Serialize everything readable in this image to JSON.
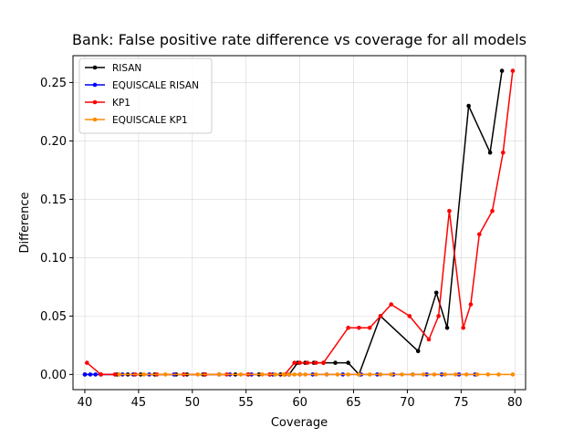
{
  "chart_data": {
    "type": "line",
    "title": "Bank: False positive rate difference vs coverage for all models",
    "xlabel": "Coverage",
    "ylabel": "Difference",
    "xlim": [
      38.9,
      81.0
    ],
    "ylim": [
      -0.013,
      0.273
    ],
    "xticks": [
      "40",
      "45",
      "50",
      "55",
      "60",
      "65",
      "70",
      "75",
      "80"
    ],
    "yticks": [
      "0.00",
      "0.05",
      "0.10",
      "0.15",
      "0.20",
      "0.25"
    ],
    "grid": true,
    "legend_position": "top-left",
    "series": [
      {
        "name": "RISAN",
        "color": "#000000",
        "x": [
          40.0,
          41.5,
          43.0,
          44.0,
          45.2,
          46.5,
          48.5,
          49.5,
          51.0,
          52.5,
          54.0,
          55.2,
          56.2,
          57.2,
          58.2,
          59.0,
          59.8,
          60.5,
          61.3,
          62.2,
          63.3,
          64.5,
          65.5,
          67.5,
          71.0,
          72.7,
          73.7,
          75.7,
          77.7,
          78.8
        ],
        "y": [
          0.0,
          0.0,
          0.0,
          0.0,
          0.0,
          0.0,
          0.0,
          0.0,
          0.0,
          0.0,
          0.0,
          0.0,
          0.0,
          0.0,
          0.0,
          0.0,
          0.01,
          0.01,
          0.01,
          0.01,
          0.01,
          0.01,
          0.0,
          0.05,
          0.02,
          0.07,
          0.04,
          0.23,
          0.19,
          0.26
        ]
      },
      {
        "name": "EQUISCALE RISAN",
        "color": "#0000ff",
        "x": [
          40.0,
          40.5,
          41.0,
          43.5,
          44.5,
          46.0,
          48.3,
          49.2,
          51.2,
          53.5,
          55.5,
          57.5,
          59.0,
          60.0,
          61.2,
          62.5,
          64.0,
          65.7,
          67.2,
          68.7,
          70.5,
          71.8,
          73.2,
          74.8,
          76.3
        ],
        "y": [
          0.0,
          0.0,
          0.0,
          0.0,
          0.0,
          0.0,
          0.0,
          0.0,
          0.0,
          0.0,
          0.0,
          0.0,
          0.0,
          0.0,
          0.0,
          0.0,
          0.0,
          0.0,
          0.0,
          0.0,
          0.0,
          0.0,
          0.0,
          0.0,
          0.0
        ]
      },
      {
        "name": "KP1",
        "color": "#ff0000",
        "x": [
          40.2,
          41.5,
          42.8,
          44.7,
          46.7,
          49.2,
          51.2,
          53.2,
          55.2,
          57.2,
          58.6,
          59.5,
          60.0,
          60.7,
          61.5,
          62.2,
          64.5,
          65.5,
          66.5,
          67.5,
          68.5,
          70.2,
          72.0,
          72.9,
          73.9,
          75.2,
          75.9,
          76.7,
          77.9,
          78.9,
          79.8
        ],
        "y": [
          0.01,
          0.0,
          0.0,
          0.0,
          0.0,
          0.0,
          0.0,
          0.0,
          0.0,
          0.0,
          0.0,
          0.01,
          0.01,
          0.01,
          0.01,
          0.01,
          0.04,
          0.04,
          0.04,
          0.05,
          0.06,
          0.05,
          0.03,
          0.05,
          0.14,
          0.04,
          0.06,
          0.12,
          0.14,
          0.19,
          0.26
        ]
      },
      {
        "name": "EQUISCALE KP1",
        "color": "#ff8c00",
        "x": [
          43.2,
          45.5,
          47.5,
          50.5,
          52.5,
          54.5,
          56.5,
          57.7,
          58.5,
          59.0,
          59.5,
          60.0,
          60.5,
          61.5,
          62.5,
          63.5,
          64.5,
          65.5,
          66.5,
          67.5,
          68.5,
          69.5,
          70.5,
          71.5,
          72.5,
          73.5,
          74.5,
          75.5,
          76.5,
          77.5,
          78.5,
          79.8
        ],
        "y": [
          0.0,
          0.0,
          0.0,
          0.0,
          0.0,
          0.0,
          0.0,
          0.0,
          0.0,
          0.0,
          0.0,
          0.0,
          0.0,
          0.0,
          0.0,
          0.0,
          0.0,
          0.0,
          0.0,
          0.0,
          0.0,
          0.0,
          0.0,
          0.0,
          0.0,
          0.0,
          0.0,
          0.0,
          0.0,
          0.0,
          0.0,
          0.0
        ]
      }
    ]
  }
}
